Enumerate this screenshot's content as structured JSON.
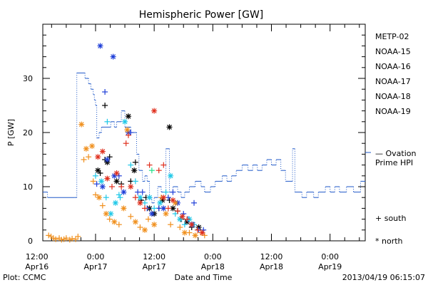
{
  "colors": {
    "METP-02": "#000000",
    "NOAA-15": "#1f3fd8",
    "NOAA-16": "#1fc8e8",
    "NOAA-17": "#22e08a",
    "NOAA-18": "#f0901e",
    "NOAA-19": "#e0301e",
    "ovation": "#1f58c8"
  },
  "footer": {
    "left": "Plot: CCMC",
    "right": "2013/04/19 06:15:07"
  },
  "chart_data": {
    "type": "scatter",
    "title": "Hemispheric Power [GW]",
    "ylabel": "P [GW]",
    "xlabel": "Date and Time",
    "ylim": [
      0,
      40
    ],
    "xlim": [
      -0.45,
      2.3
    ],
    "x_unit": "days from 2013-04-17 00:00 UT",
    "yticks": [
      0,
      10,
      20,
      30
    ],
    "xticks": [
      {
        "x": -0.5,
        "line1": "12:00",
        "line2": "Apr16"
      },
      {
        "x": 0.0,
        "line1": "0:00",
        "line2": "Apr17"
      },
      {
        "x": 0.5,
        "line1": "12:00",
        "line2": "Apr17"
      },
      {
        "x": 1.0,
        "line1": "0:00",
        "line2": "Apr18"
      },
      {
        "x": 1.5,
        "line1": "12:00",
        "line2": "Apr18"
      },
      {
        "x": 2.0,
        "line1": "0:00",
        "line2": "Apr19"
      }
    ],
    "legend": [
      "METP-02",
      "NOAA-15",
      "NOAA-16",
      "NOAA-17",
      "NOAA-18",
      "NOAA-19"
    ],
    "ovation_label": [
      "— Ovation",
      "Prime HPI"
    ],
    "marker_key": {
      "south": "+ south",
      "north": "* north"
    },
    "ovation_series": [
      [
        -0.45,
        9
      ],
      [
        -0.41,
        8
      ],
      [
        -0.18,
        8
      ],
      [
        -0.16,
        31
      ],
      [
        -0.09,
        30
      ],
      [
        -0.06,
        29
      ],
      [
        -0.04,
        28
      ],
      [
        -0.02,
        27
      ],
      [
        -0.01,
        26
      ],
      [
        0.0,
        25
      ],
      [
        0.01,
        19
      ],
      [
        0.03,
        20
      ],
      [
        0.05,
        21
      ],
      [
        0.13,
        22
      ],
      [
        0.16,
        21
      ],
      [
        0.18,
        22
      ],
      [
        0.22,
        24
      ],
      [
        0.25,
        21
      ],
      [
        0.3,
        20
      ],
      [
        0.35,
        16
      ],
      [
        0.37,
        13
      ],
      [
        0.4,
        11
      ],
      [
        0.42,
        12
      ],
      [
        0.44,
        11
      ],
      [
        0.46,
        8
      ],
      [
        0.48,
        7
      ],
      [
        0.5,
        8
      ],
      [
        0.53,
        10
      ],
      [
        0.56,
        9
      ],
      [
        0.6,
        17
      ],
      [
        0.63,
        9
      ],
      [
        0.66,
        10
      ],
      [
        0.7,
        9
      ],
      [
        0.73,
        8
      ],
      [
        0.76,
        9
      ],
      [
        0.8,
        10
      ],
      [
        0.85,
        11
      ],
      [
        0.9,
        10
      ],
      [
        0.93,
        9
      ],
      [
        0.98,
        10
      ],
      [
        1.02,
        11
      ],
      [
        1.08,
        12
      ],
      [
        1.12,
        11
      ],
      [
        1.16,
        12
      ],
      [
        1.2,
        13
      ],
      [
        1.25,
        14
      ],
      [
        1.3,
        13
      ],
      [
        1.34,
        14
      ],
      [
        1.38,
        13
      ],
      [
        1.42,
        14
      ],
      [
        1.46,
        15
      ],
      [
        1.5,
        14
      ],
      [
        1.54,
        15
      ],
      [
        1.58,
        13
      ],
      [
        1.62,
        11
      ],
      [
        1.68,
        17
      ],
      [
        1.7,
        9
      ],
      [
        1.76,
        8
      ],
      [
        1.8,
        9
      ],
      [
        1.86,
        8
      ],
      [
        1.9,
        9
      ],
      [
        1.96,
        10
      ],
      [
        2.0,
        9
      ],
      [
        2.04,
        10
      ],
      [
        2.08,
        9
      ],
      [
        2.14,
        10
      ],
      [
        2.2,
        9
      ],
      [
        2.26,
        11
      ],
      [
        2.3,
        11
      ]
    ],
    "series": [
      {
        "name": "METP-02",
        "points": [
          [
            0.02,
            13,
            "n"
          ],
          [
            0.04,
            12.5,
            "s"
          ],
          [
            0.08,
            15,
            "s"
          ],
          [
            0.1,
            14.5,
            "n"
          ],
          [
            0.12,
            15.5,
            "s"
          ],
          [
            0.18,
            11,
            "n"
          ],
          [
            0.22,
            10.5,
            "s"
          ],
          [
            0.28,
            23,
            "n"
          ],
          [
            0.3,
            11,
            "s"
          ],
          [
            0.33,
            13,
            "n"
          ],
          [
            0.39,
            7.5,
            "s"
          ],
          [
            0.43,
            8,
            "s"
          ],
          [
            0.46,
            6,
            "n"
          ],
          [
            0.5,
            5,
            "n"
          ],
          [
            0.54,
            6,
            "s"
          ],
          [
            0.57,
            7.5,
            "n"
          ],
          [
            0.63,
            7.5,
            "s"
          ],
          [
            0.66,
            6,
            "n"
          ],
          [
            0.7,
            5.5,
            "s"
          ],
          [
            0.73,
            4,
            "s"
          ],
          [
            0.78,
            3.5,
            "n"
          ],
          [
            0.82,
            2.5,
            "s"
          ],
          [
            0.88,
            2.5,
            "n"
          ],
          [
            0.08,
            25,
            "s"
          ],
          [
            0.34,
            14.5,
            "s"
          ],
          [
            0.63,
            21,
            "n"
          ]
        ]
      },
      {
        "name": "NOAA-15",
        "points": [
          [
            0.01,
            10.5,
            "s"
          ],
          [
            0.06,
            10,
            "n"
          ],
          [
            0.1,
            15,
            "n"
          ],
          [
            0.16,
            12,
            "n"
          ],
          [
            0.2,
            12,
            "s"
          ],
          [
            0.24,
            9,
            "n"
          ],
          [
            0.28,
            20,
            "n"
          ],
          [
            0.3,
            20,
            "s"
          ],
          [
            0.36,
            9,
            "s"
          ],
          [
            0.4,
            9,
            "s"
          ],
          [
            0.44,
            6,
            "s"
          ],
          [
            0.48,
            5,
            "n"
          ],
          [
            0.54,
            6,
            "s"
          ],
          [
            0.58,
            6,
            "n"
          ],
          [
            0.62,
            8,
            "s"
          ],
          [
            0.66,
            9,
            "s"
          ],
          [
            0.7,
            7,
            "n"
          ],
          [
            0.75,
            5,
            "s"
          ],
          [
            0.79,
            4,
            "s"
          ],
          [
            0.83,
            3,
            "n"
          ],
          [
            0.88,
            2,
            "s"
          ],
          [
            0.92,
            2,
            "s"
          ],
          [
            0.04,
            36,
            "n"
          ],
          [
            0.08,
            27.5,
            "s"
          ],
          [
            0.15,
            34,
            "n"
          ],
          [
            0.84,
            7,
            "s"
          ]
        ]
      },
      {
        "name": "NOAA-16",
        "points": [
          [
            0.0,
            12,
            "s"
          ],
          [
            0.05,
            11,
            "n"
          ],
          [
            0.09,
            8,
            "s"
          ],
          [
            0.13,
            5,
            "n"
          ],
          [
            0.17,
            7,
            "n"
          ],
          [
            0.21,
            8,
            "s"
          ],
          [
            0.25,
            22,
            "n"
          ],
          [
            0.3,
            14,
            "s"
          ],
          [
            0.34,
            11,
            "s"
          ],
          [
            0.38,
            8,
            "n"
          ],
          [
            0.42,
            7,
            "s"
          ],
          [
            0.46,
            8,
            "n"
          ],
          [
            0.5,
            6,
            "s"
          ],
          [
            0.55,
            7,
            "n"
          ],
          [
            0.6,
            9,
            "s"
          ],
          [
            0.64,
            12,
            "n"
          ],
          [
            0.68,
            5,
            "s"
          ],
          [
            0.72,
            4,
            "n"
          ],
          [
            0.76,
            3,
            "s"
          ],
          [
            0.8,
            4,
            "n"
          ],
          [
            0.84,
            3,
            "s"
          ],
          [
            0.1,
            22,
            "s"
          ],
          [
            0.2,
            8.5,
            "s"
          ]
        ]
      },
      {
        "name": "NOAA-17",
        "points": [
          [
            0.48,
            13,
            "s"
          ]
        ]
      },
      {
        "name": "NOAA-18",
        "points": [
          [
            -0.4,
            1,
            "s"
          ],
          [
            -0.38,
            0.8,
            "s"
          ],
          [
            -0.36,
            0.5,
            "s"
          ],
          [
            -0.34,
            0.3,
            "s"
          ],
          [
            -0.31,
            0.5,
            "s"
          ],
          [
            -0.29,
            0.2,
            "s"
          ],
          [
            -0.27,
            0.3,
            "s"
          ],
          [
            -0.25,
            0.5,
            "s"
          ],
          [
            -0.22,
            0.2,
            "s"
          ],
          [
            -0.2,
            0.4,
            "s"
          ],
          [
            -0.17,
            0.3,
            "s"
          ],
          [
            -0.15,
            0.8,
            "s"
          ],
          [
            -0.12,
            21.5,
            "n"
          ],
          [
            -0.1,
            15,
            "s"
          ],
          [
            -0.08,
            17,
            "n"
          ],
          [
            -0.06,
            15.5,
            "s"
          ],
          [
            -0.03,
            17.5,
            "n"
          ],
          [
            -0.02,
            11,
            "s"
          ],
          [
            0.0,
            8.5,
            "s"
          ],
          [
            0.03,
            8,
            "n"
          ],
          [
            0.06,
            6.5,
            "s"
          ],
          [
            0.09,
            5,
            "n"
          ],
          [
            0.12,
            4,
            "s"
          ],
          [
            0.16,
            3.5,
            "n"
          ],
          [
            0.2,
            3,
            "s"
          ],
          [
            0.24,
            6,
            "n"
          ],
          [
            0.27,
            20.5,
            "n"
          ],
          [
            0.3,
            4.5,
            "s"
          ],
          [
            0.34,
            3.5,
            "n"
          ],
          [
            0.38,
            2.5,
            "s"
          ],
          [
            0.42,
            2,
            "n"
          ],
          [
            0.45,
            4,
            "s"
          ],
          [
            0.5,
            3,
            "n"
          ],
          [
            0.56,
            8,
            "s"
          ],
          [
            0.6,
            5,
            "n"
          ],
          [
            0.64,
            3,
            "s"
          ],
          [
            0.68,
            7,
            "n"
          ],
          [
            0.72,
            2.5,
            "s"
          ],
          [
            0.76,
            1.5,
            "n"
          ],
          [
            0.8,
            1.5,
            "s"
          ],
          [
            0.85,
            1,
            "n"
          ],
          [
            0.9,
            1.5,
            "s"
          ],
          [
            0.93,
            1,
            "s"
          ]
        ]
      },
      {
        "name": "NOAA-19",
        "points": [
          [
            0.02,
            15.5,
            "n"
          ],
          [
            0.06,
            16.5,
            "n"
          ],
          [
            0.1,
            11.5,
            "n"
          ],
          [
            0.14,
            10,
            "s"
          ],
          [
            0.18,
            12.5,
            "n"
          ],
          [
            0.22,
            10,
            "s"
          ],
          [
            0.26,
            18,
            "s"
          ],
          [
            0.3,
            10,
            "n"
          ],
          [
            0.34,
            8,
            "s"
          ],
          [
            0.38,
            7,
            "n"
          ],
          [
            0.42,
            6,
            "s"
          ],
          [
            0.46,
            14,
            "s"
          ],
          [
            0.5,
            24,
            "n"
          ],
          [
            0.54,
            13,
            "s"
          ],
          [
            0.58,
            8,
            "n"
          ],
          [
            0.62,
            6,
            "s"
          ],
          [
            0.66,
            7.5,
            "n"
          ],
          [
            0.7,
            5.5,
            "s"
          ],
          [
            0.74,
            4.5,
            "n"
          ],
          [
            0.78,
            4,
            "s"
          ],
          [
            0.82,
            3,
            "n"
          ],
          [
            0.87,
            2,
            "s"
          ],
          [
            0.91,
            1.5,
            "n"
          ],
          [
            0.28,
            19.5,
            "s"
          ],
          [
            0.58,
            14,
            "s"
          ]
        ]
      }
    ]
  }
}
